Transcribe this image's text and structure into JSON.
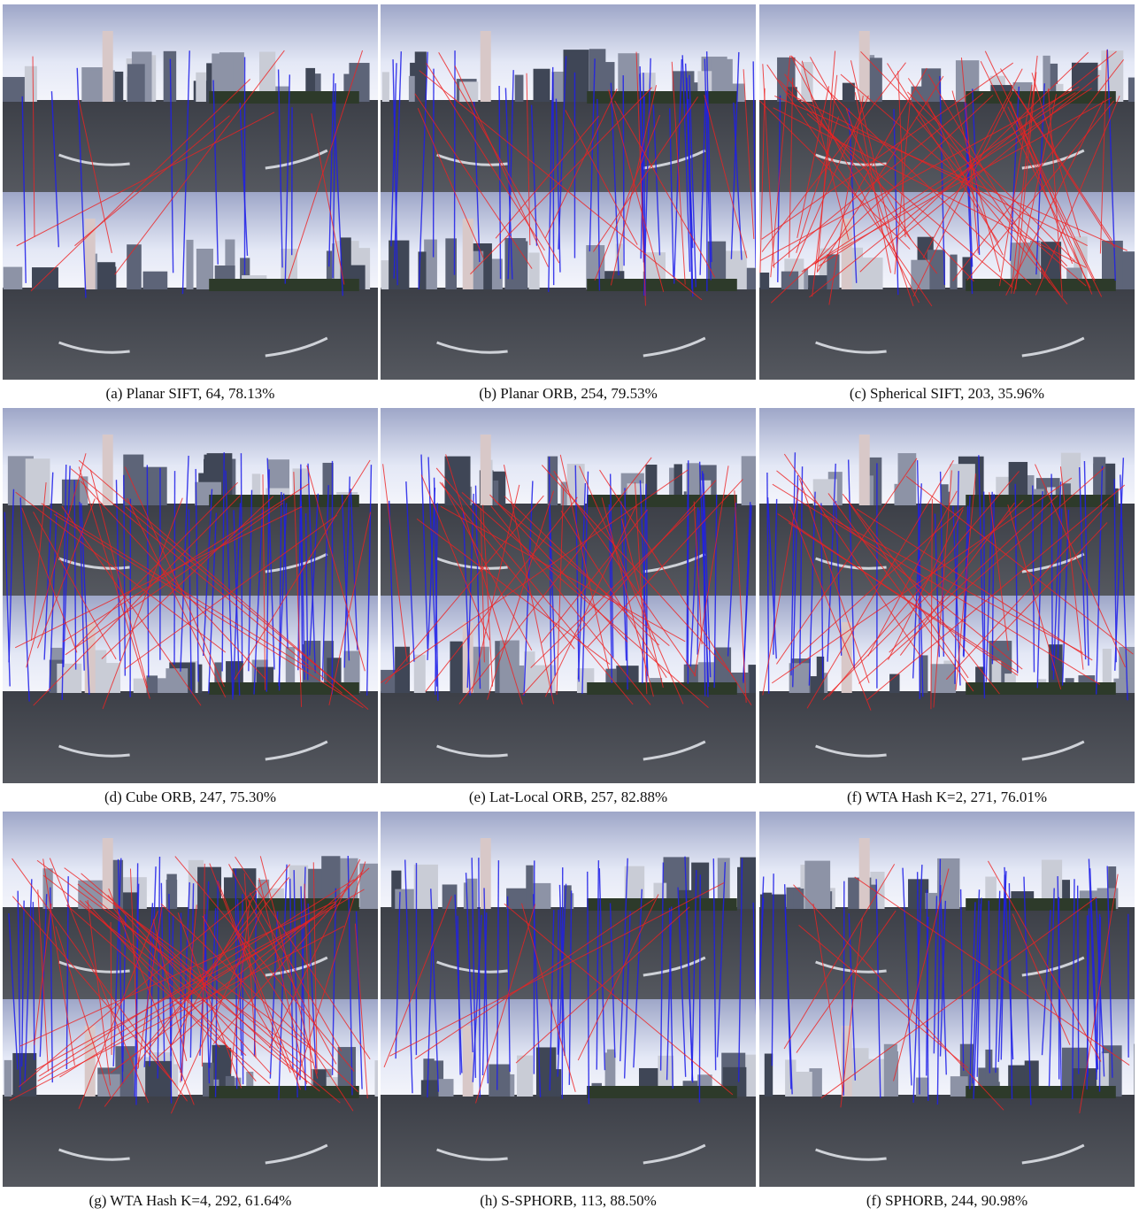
{
  "figure": {
    "panels": [
      {
        "caption": "(a) Planar SIFT, 64, 78.13%"
      },
      {
        "caption": "(b) Planar ORB, 254, 79.53%"
      },
      {
        "caption": "(c) Spherical SIFT, 203, 35.96%"
      },
      {
        "caption": "(d) Cube ORB, 247, 75.30%"
      },
      {
        "caption": "(e) Lat-Local ORB, 257, 82.88%"
      },
      {
        "caption": "(f) WTA Hash K=2, 271, 76.01%"
      },
      {
        "caption": "(g) WTA Hash K=4, 292, 61.64%"
      },
      {
        "caption": "(h) S-SPHORB, 113, 88.50%"
      },
      {
        "caption": "(f) SPHORB, 244, 90.98%"
      }
    ]
  }
}
